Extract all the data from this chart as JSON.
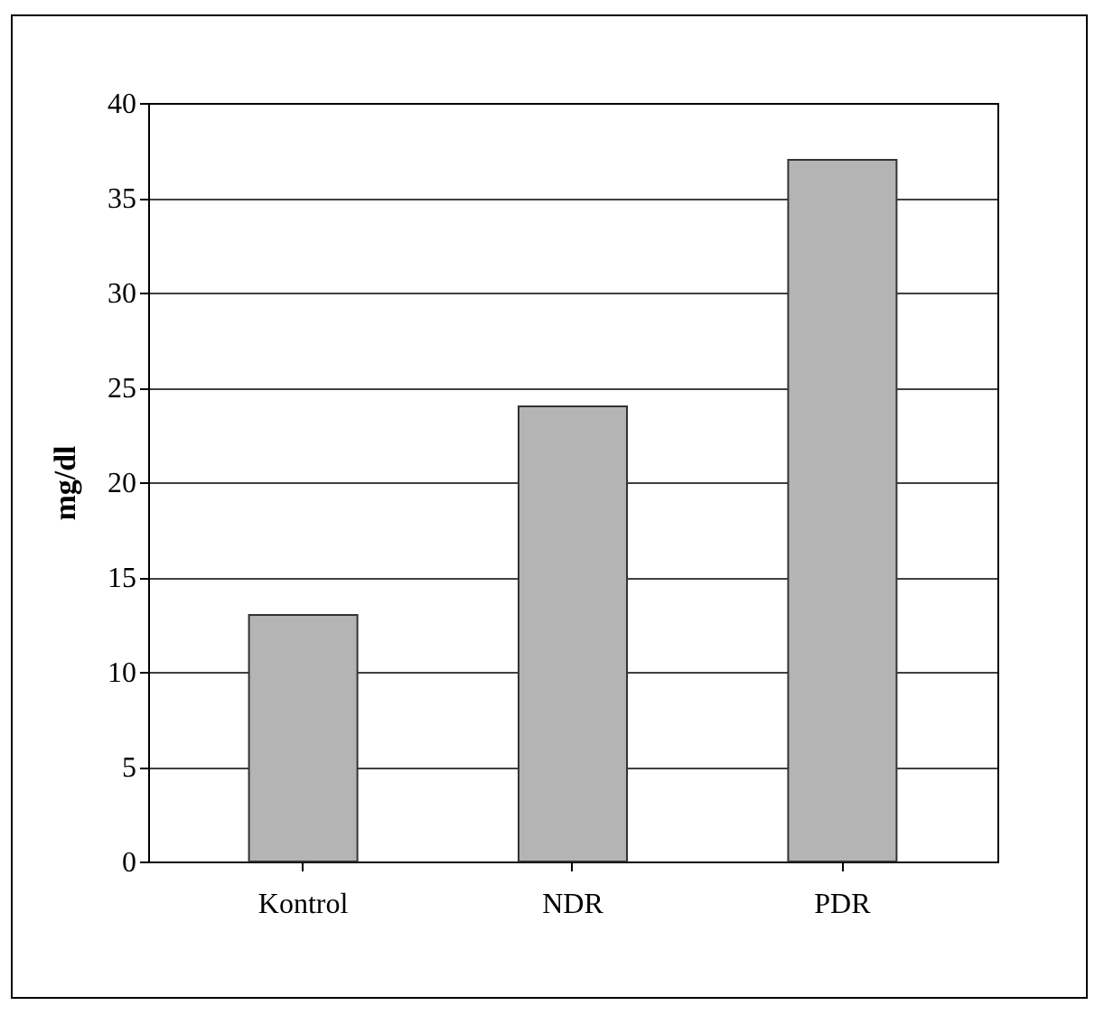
{
  "chart_data": {
    "type": "bar",
    "ylabel": "mg/dl",
    "categories": [
      "Kontrol",
      "NDR",
      "PDR"
    ],
    "values": [
      13,
      24,
      37
    ],
    "color": "#b4b4b4",
    "ylim": [
      0,
      40
    ],
    "yticks": [
      0,
      5,
      10,
      15,
      20,
      25,
      30,
      35,
      40
    ],
    "grid": "y"
  }
}
